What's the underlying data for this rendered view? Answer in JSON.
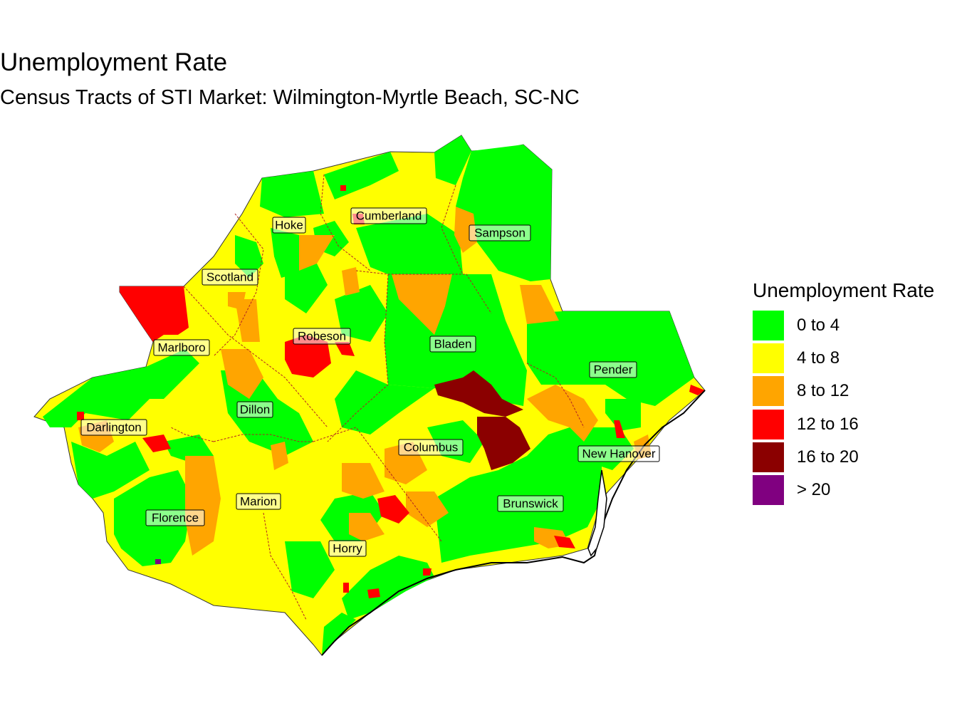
{
  "title": "Unemployment Rate",
  "subtitle": "Census Tracts of STI Market: Wilmington-Myrtle Beach, SC-NC",
  "legend": {
    "title": "Unemployment Rate",
    "items": [
      {
        "label": "0 to 4",
        "color": "#00ff00"
      },
      {
        "label": "4 to 8",
        "color": "#ffff00"
      },
      {
        "label": "8 to 12",
        "color": "#ffa500"
      },
      {
        "label": "12 to 16",
        "color": "#ff0000"
      },
      {
        "label": "16 to 20",
        "color": "#8b0000"
      },
      {
        "label": "> 20",
        "color": "#800080"
      }
    ]
  },
  "counties": {
    "hoke": "Hoke",
    "cumberland": "Cumberland",
    "sampson": "Sampson",
    "scotland": "Scotland",
    "robeson": "Robeson",
    "bladen": "Bladen",
    "marlboro": "Marlboro",
    "pender": "Pender",
    "dillon": "Dillon",
    "darlington": "Darlington",
    "columbus": "Columbus",
    "new_hanover": "New Hanover",
    "marion": "Marion",
    "brunswick": "Brunswick",
    "florence": "Florence",
    "horry": "Horry"
  }
}
